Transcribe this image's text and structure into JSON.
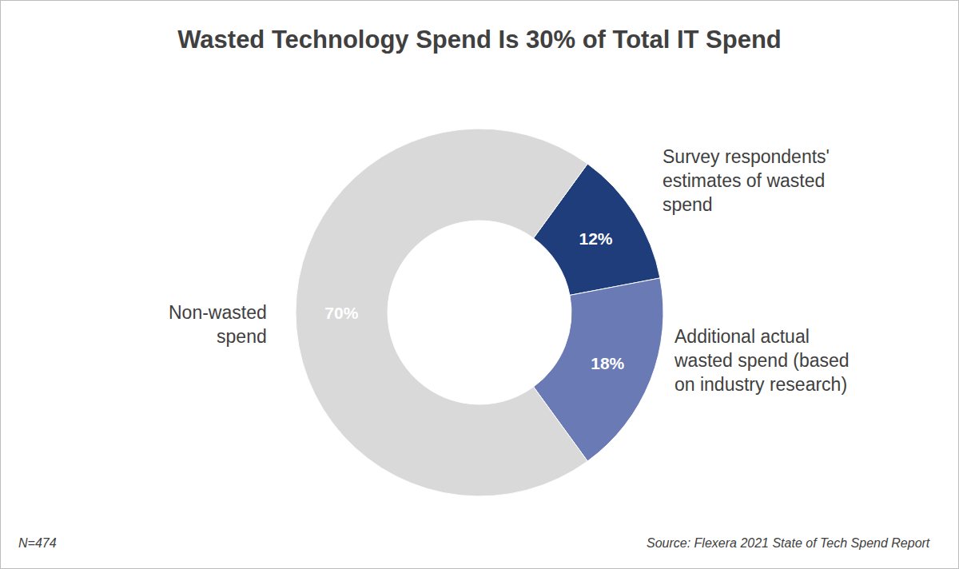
{
  "chart_data": {
    "type": "pie",
    "title": "Wasted Technology Spend Is 30% of Total IT Spend",
    "categories": [
      "Survey respondents' estimates of wasted spend",
      "Additional actual wasted spend (based on industry research)",
      "Non-wasted spend"
    ],
    "values": [
      12,
      18,
      70
    ],
    "value_labels": [
      "12%",
      "18%",
      "70%"
    ],
    "colors": [
      "#1f3d7a",
      "#6a7ab5",
      "#d9d9d9"
    ],
    "data_labels": true,
    "annotations": [
      "N=474",
      "Source: Flexera 2021 State of Tech Spend Report"
    ]
  }
}
